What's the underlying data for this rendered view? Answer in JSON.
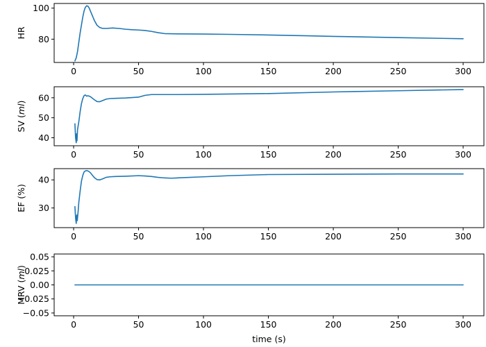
{
  "chart_data": [
    {
      "type": "line",
      "ylabel": "HR",
      "ylabel_italic": "",
      "ylabel_suffix": "",
      "xlim": [
        -15,
        316
      ],
      "ylim": [
        65,
        103
      ],
      "xticks": [
        0,
        50,
        100,
        150,
        200,
        250,
        300
      ],
      "yticks": [
        80,
        100
      ],
      "series": [
        {
          "x": [
            1,
            2,
            3,
            4,
            5,
            6,
            7,
            8,
            9,
            10,
            11,
            12,
            14,
            16,
            18,
            20,
            22,
            25,
            30,
            35,
            40,
            45,
            50,
            55,
            60,
            65,
            70,
            80,
            100,
            120,
            150,
            180,
            200,
            250,
            300
          ],
          "y": [
            66,
            68,
            72,
            78,
            84,
            89,
            94,
            98,
            100.5,
            101.5,
            101.3,
            100,
            96,
            92,
            89,
            87.6,
            87,
            86.9,
            87.2,
            86.9,
            86.4,
            86.1,
            85.9,
            85.6,
            85,
            84.2,
            83.6,
            83.4,
            83.3,
            83.1,
            82.7,
            82.2,
            81.8,
            81,
            80.3
          ]
        }
      ]
    },
    {
      "type": "line",
      "ylabel": "SV",
      "ylabel_italic": "ml",
      "ylabel_suffix": "",
      "xlim": [
        -15,
        316
      ],
      "ylim": [
        36,
        65.5
      ],
      "xticks": [
        0,
        50,
        100,
        150,
        200,
        250,
        300
      ],
      "yticks": [
        40,
        50,
        60
      ],
      "series": [
        {
          "x": [
            1,
            1.2,
            1.5,
            2,
            2.3,
            2.6,
            3,
            4,
            5,
            6,
            7,
            8,
            9,
            10,
            11,
            12,
            13,
            14,
            16,
            18,
            20,
            22,
            25,
            28,
            32,
            40,
            50,
            55,
            60,
            70,
            80,
            100,
            150,
            200,
            250,
            300
          ],
          "y": [
            47,
            44,
            40,
            37.5,
            42,
            38.5,
            44,
            48,
            53,
            57,
            59.5,
            61,
            61.4,
            60.8,
            61,
            60.8,
            60.5,
            60,
            59,
            58.1,
            58,
            58.5,
            59.3,
            59.6,
            59.7,
            59.9,
            60.3,
            61.2,
            61.6,
            61.6,
            61.6,
            61.7,
            62.1,
            62.9,
            63.5,
            64.1
          ]
        }
      ]
    },
    {
      "type": "line",
      "ylabel": "EF (%)",
      "ylabel_italic": "",
      "ylabel_suffix": "",
      "xlim": [
        -15,
        316
      ],
      "ylim": [
        23,
        44
      ],
      "xticks": [
        0,
        50,
        100,
        150,
        200,
        250,
        300
      ],
      "yticks": [
        30,
        40
      ],
      "series": [
        {
          "x": [
            1,
            1.3,
            1.6,
            2,
            2.4,
            2.8,
            3.5,
            4,
            5,
            6,
            7,
            8,
            9,
            10,
            11,
            12,
            13,
            14,
            16,
            18,
            20,
            22,
            25,
            28,
            32,
            40,
            50,
            55,
            60,
            65,
            70,
            75,
            80,
            100,
            120,
            150,
            200,
            250,
            300
          ],
          "y": [
            30.5,
            28,
            26,
            24.5,
            27.5,
            25.5,
            29,
            32,
            36,
            39.5,
            41.5,
            42.8,
            43.2,
            43.3,
            43.2,
            42.9,
            42.5,
            41.9,
            40.8,
            40.1,
            40,
            40.3,
            40.9,
            41.1,
            41.2,
            41.3,
            41.5,
            41.4,
            41.2,
            40.9,
            40.7,
            40.6,
            40.7,
            41.1,
            41.5,
            41.9,
            42,
            42.1,
            42.1
          ]
        }
      ]
    },
    {
      "type": "line",
      "ylabel": "MRV",
      "ylabel_italic": "ml",
      "ylabel_suffix": "",
      "xlabel": "time (s)",
      "xlim": [
        -15,
        316
      ],
      "ylim": [
        -0.055,
        0.055
      ],
      "xticks": [
        0,
        50,
        100,
        150,
        200,
        250,
        300
      ],
      "yticks": [
        -0.05,
        -0.025,
        0,
        0.025,
        0.05
      ],
      "yticklabels": [
        "−0.05",
        "−0.025",
        "0.00",
        "0.025",
        "0.05"
      ],
      "series": [
        {
          "x": [
            1,
            300
          ],
          "y": [
            0,
            0
          ]
        }
      ]
    }
  ]
}
